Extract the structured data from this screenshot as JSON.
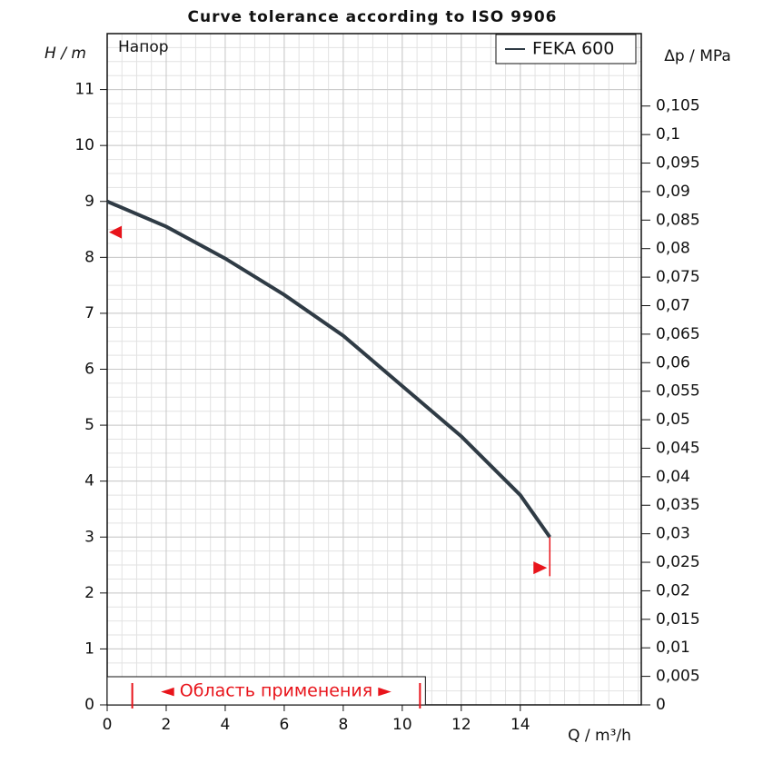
{
  "chart_data": {
    "type": "line",
    "title": "Curve tolerance according to ISO 9906",
    "xlabel": "Q / m³/h",
    "ylabel": "H / m",
    "y2label": "Δp / MPa",
    "annotation": "Напор",
    "xlim": [
      0,
      18.1
    ],
    "ylim": [
      0,
      12
    ],
    "y2lim": [
      0,
      0.1177
    ],
    "xticks": [
      0,
      2,
      4,
      6,
      8,
      10,
      12,
      14
    ],
    "yticks": [
      0,
      1,
      2,
      3,
      4,
      5,
      6,
      7,
      8,
      9,
      10,
      11
    ],
    "y2ticks": [
      0,
      {
        "value": 0.005,
        "label": "0,005"
      },
      {
        "value": 0.01,
        "label": "0,01"
      },
      {
        "value": 0.015,
        "label": "0,015"
      },
      {
        "value": 0.02,
        "label": "0,02"
      },
      {
        "value": 0.025,
        "label": "0,025"
      },
      {
        "value": 0.03,
        "label": "0,03"
      },
      {
        "value": 0.035,
        "label": "0,035"
      },
      {
        "value": 0.04,
        "label": "0,04"
      },
      {
        "value": 0.045,
        "label": "0,045"
      },
      {
        "value": 0.05,
        "label": "0,05"
      },
      {
        "value": 0.055,
        "label": "0,055"
      },
      {
        "value": 0.06,
        "label": "0,06"
      },
      {
        "value": 0.065,
        "label": "0,065"
      },
      {
        "value": 0.07,
        "label": "0,07"
      },
      {
        "value": 0.075,
        "label": "0,075"
      },
      {
        "value": 0.08,
        "label": "0,08"
      },
      {
        "value": 0.085,
        "label": "0,085"
      },
      {
        "value": 0.09,
        "label": "0,09"
      },
      {
        "value": 0.095,
        "label": "0,095"
      },
      {
        "value": 0.1,
        "label": "0,1"
      },
      {
        "value": 0.105,
        "label": "0,105"
      }
    ],
    "grid": true,
    "x_minor_step": 0.5,
    "y_minor_step": 0.25,
    "legend": "top-right",
    "x": [
      0,
      2,
      4,
      6,
      8,
      10,
      12,
      14,
      15
    ],
    "series": [
      {
        "name": "FEKA 600",
        "color": "#2f3b45",
        "values": [
          9,
          8.55,
          7.98,
          7.33,
          6.6,
          5.7,
          4.8,
          3.75,
          3.0
        ]
      }
    ],
    "tolerance": {
      "color": "#e8141b",
      "h_at_zero": 8.45,
      "q_end": 15,
      "h_end_low": 2.45,
      "h_end_bottom": 2.3
    },
    "application_range": {
      "label": "◄ Область применения ►",
      "from": 0.85,
      "to": 10.6
    }
  }
}
